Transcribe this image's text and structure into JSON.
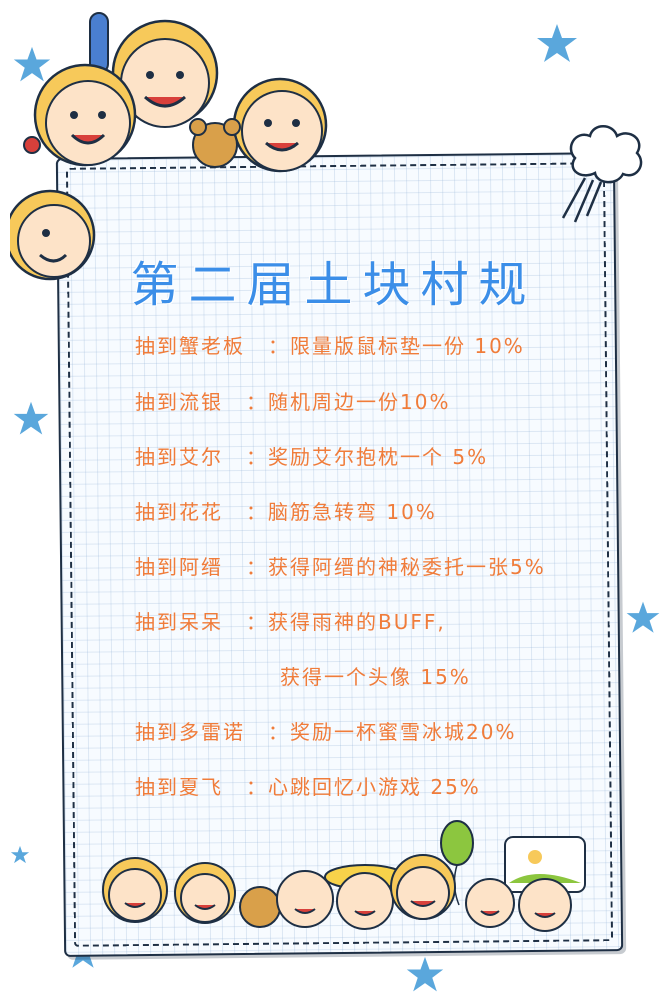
{
  "title": "第二届土块村规",
  "rules": [
    {
      "who": "抽到蟹老板",
      "prize": "：限量版鼠标垫一份  10%"
    },
    {
      "who": "抽到流银",
      "prize": "：随机周边一份10%"
    },
    {
      "who": "抽到艾尔",
      "prize": "：奖励艾尔抱枕一个 5%"
    },
    {
      "who": "抽到花花",
      "prize": "：脑筋急转弯 10%"
    },
    {
      "who": "抽到阿缙",
      "prize": "：获得阿缙的神秘委托一张5%"
    },
    {
      "who": "抽到呆呆",
      "prize": "：获得雨神的BUFF,"
    },
    {
      "who": "",
      "prize": "获得一个头像 15%"
    },
    {
      "who": "抽到多雷诺",
      "prize": "：奖励一杯蜜雪冰城20%"
    },
    {
      "who": "抽到夏飞",
      "prize": "：心跳回忆小游戏 25%"
    }
  ],
  "colors": {
    "title": "#3b8ee8",
    "rule_text": "#f07c3a",
    "star": "#5aa7dc",
    "frame": "#1e2f44"
  },
  "icons": [
    "star-icon",
    "cloud-burst-icon",
    "kid-face-icon",
    "balloon-icon",
    "teddy-bear-icon",
    "landscape-sign-icon"
  ]
}
